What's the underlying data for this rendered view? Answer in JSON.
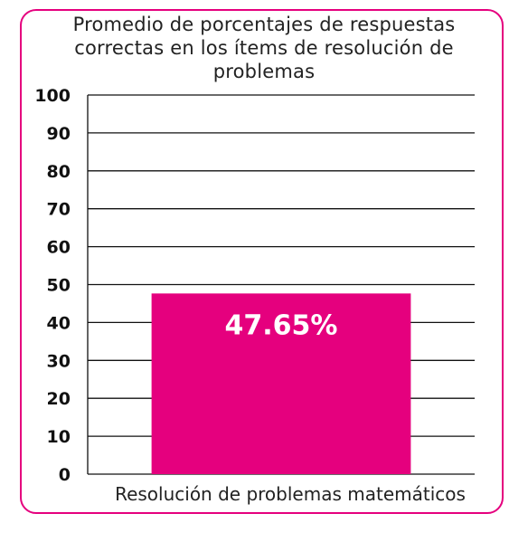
{
  "chart_data": {
    "type": "bar",
    "title": "Promedio de porcentajes de respuestas correctas en los ítems de resolución de problemas",
    "categories": [
      "Resolución de problemas matemáticos"
    ],
    "values": [
      47.65
    ],
    "data_labels": [
      "47.65%"
    ],
    "ylim": [
      0,
      100
    ],
    "yticks": [
      0,
      10,
      20,
      30,
      40,
      50,
      60,
      70,
      80,
      90,
      100
    ],
    "ytick_labels": [
      "0",
      "10",
      "20",
      "30",
      "40",
      "50",
      "60",
      "70",
      "80",
      "90",
      "100"
    ],
    "grid": true,
    "colors": {
      "bar": "#e5007e",
      "frame": "#e5007e",
      "grid": "#111111"
    }
  }
}
